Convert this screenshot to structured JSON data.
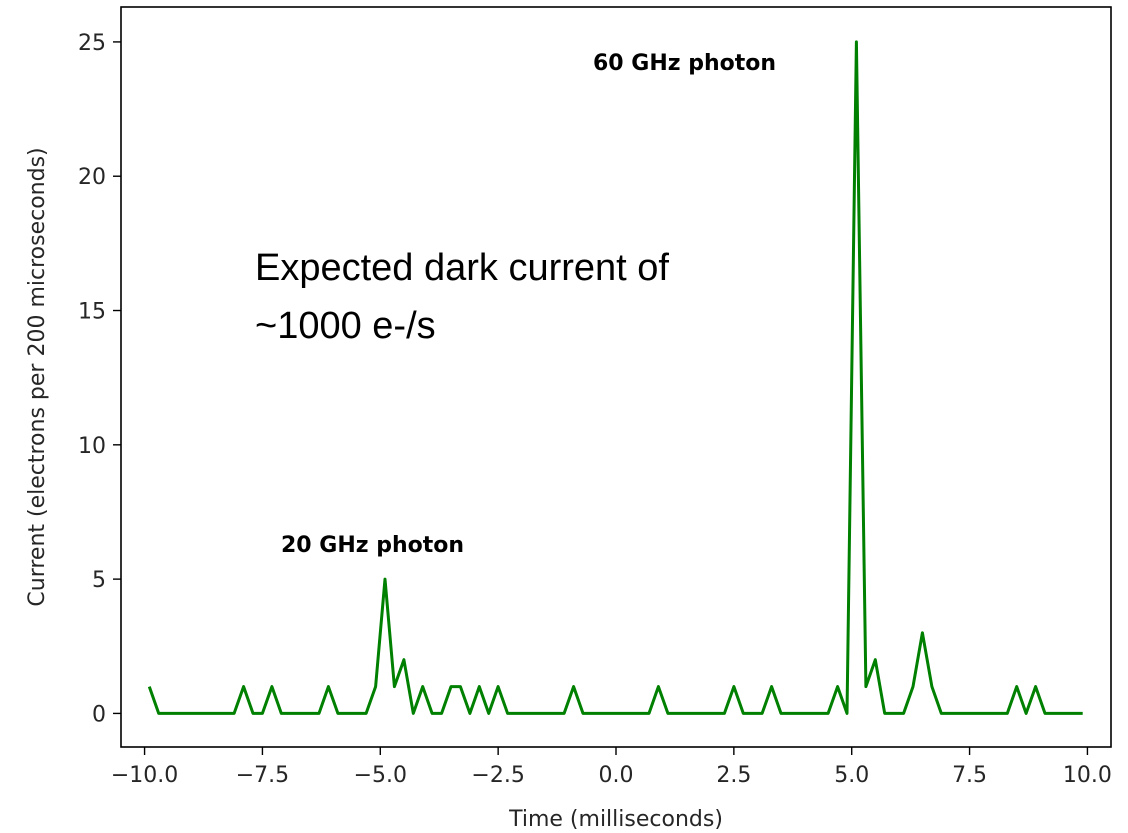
{
  "chart_data": {
    "type": "line",
    "xlabel": "Time (milliseconds)",
    "ylabel": "Current (electrons per 200 microseconds)",
    "xlim": [
      -10.5,
      10.5
    ],
    "ylim": [
      -1.25,
      26.3
    ],
    "xticks": [
      -10.0,
      -7.5,
      -5.0,
      -2.5,
      0.0,
      2.5,
      5.0,
      7.5,
      10.0
    ],
    "xtick_labels": [
      "−10.0",
      "−7.5",
      "−5.0",
      "−2.5",
      "0.0",
      "2.5",
      "5.0",
      "7.5",
      "10.0"
    ],
    "yticks": [
      0,
      5,
      10,
      15,
      20,
      25
    ],
    "ytick_labels": [
      "0",
      "5",
      "10",
      "15",
      "20",
      "25"
    ],
    "grid": false,
    "line_color": "#008000",
    "series": [
      {
        "x": [
          -9.9,
          -9.7,
          -9.5,
          -9.3,
          -9.1,
          -8.9,
          -8.7,
          -8.5,
          -8.3,
          -8.1,
          -7.9,
          -7.7,
          -7.5,
          -7.3,
          -7.1,
          -6.9,
          -6.7,
          -6.5,
          -6.3,
          -6.1,
          -5.9,
          -5.7,
          -5.5,
          -5.3,
          -5.1,
          -4.9,
          -4.7,
          -4.5,
          -4.3,
          -4.1,
          -3.9,
          -3.7,
          -3.5,
          -3.3,
          -3.1,
          -2.9,
          -2.7,
          -2.5,
          -2.3,
          -2.1,
          -1.9,
          -1.7,
          -1.5,
          -1.3,
          -1.1,
          -0.9,
          -0.7,
          -0.5,
          -0.3,
          -0.1,
          0.1,
          0.3,
          0.5,
          0.7,
          0.9,
          1.1,
          1.3,
          1.5,
          1.7,
          1.9,
          2.1,
          2.3,
          2.5,
          2.7,
          2.9,
          3.1,
          3.3,
          3.5,
          3.7,
          3.9,
          4.1,
          4.3,
          4.5,
          4.7,
          4.9,
          5.1,
          5.3,
          5.5,
          5.7,
          5.9,
          6.1,
          6.3,
          6.5,
          6.7,
          6.9,
          7.1,
          7.3,
          7.5,
          7.7,
          7.9,
          8.1,
          8.3,
          8.5,
          8.7,
          8.9,
          9.1,
          9.3,
          9.5,
          9.7,
          9.9
        ],
        "y": [
          1,
          0,
          0,
          0,
          0,
          0,
          0,
          0,
          0,
          0,
          1,
          0,
          0,
          1,
          0,
          0,
          0,
          0,
          0,
          1,
          0,
          0,
          0,
          0,
          1,
          5,
          1,
          2,
          0,
          1,
          0,
          0,
          1,
          1,
          0,
          1,
          0,
          1,
          0,
          0,
          0,
          0,
          0,
          0,
          0,
          1,
          0,
          0,
          0,
          0,
          0,
          0,
          0,
          0,
          1,
          0,
          0,
          0,
          0,
          0,
          0,
          0,
          1,
          0,
          0,
          0,
          1,
          0,
          0,
          0,
          0,
          0,
          0,
          1,
          0,
          25,
          1,
          2,
          0,
          0,
          0,
          1,
          3,
          1,
          0,
          0,
          0,
          0,
          0,
          0,
          0,
          0,
          1,
          0,
          1,
          0,
          0,
          0,
          0,
          0
        ]
      }
    ],
    "annotations": [
      {
        "text": "60 GHz photon",
        "x": 2.6,
        "y": 24.0
      },
      {
        "text": "20 GHz photon",
        "x": -7.8,
        "y": 6.2
      }
    ],
    "note_lines": [
      "Expected dark current of",
      "~1000 e-/s"
    ]
  }
}
